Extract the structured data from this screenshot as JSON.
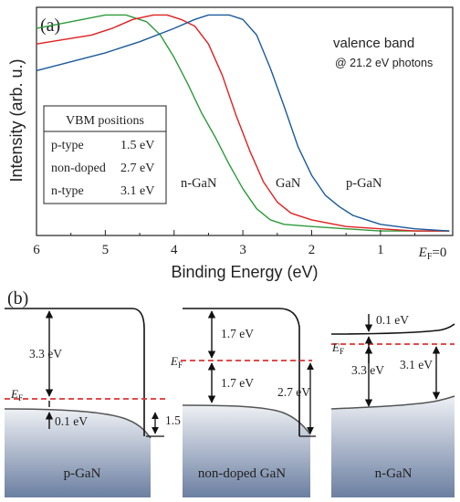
{
  "panel_a": {
    "label": "(a)",
    "annotation_line1": "valence band",
    "annotation_line2": "@ 21.2 eV photons",
    "curve_labels": {
      "n": "n-GaN",
      "un": "GaN",
      "p": "p-GaN"
    },
    "vbm_table": {
      "title": "VBM positions",
      "rows": [
        {
          "name": "p-type",
          "value": "1.5 eV"
        },
        {
          "name": "non-doped",
          "value": "2.7 eV"
        },
        {
          "name": "n-type",
          "value": "3.1 eV"
        }
      ]
    }
  },
  "chart_data": {
    "type": "line",
    "title": "",
    "xlabel": "Binding Energy (eV)",
    "ylabel": "Intensity (arb. u.)",
    "xlim": [
      6,
      -0.05
    ],
    "ylim": [
      0,
      1
    ],
    "x_reversed": true,
    "x_ticks": [
      6,
      5,
      4,
      3,
      2,
      1
    ],
    "x_tick_labels": [
      "6",
      "5",
      "4",
      "3",
      "2",
      "1"
    ],
    "x_zero_label": {
      "main": "E",
      "sub": "F",
      "suffix": "=0"
    },
    "grid": false,
    "series": [
      {
        "name": "n-GaN",
        "color": "#2e9a3a",
        "points": [
          [
            6.0,
            0.93
          ],
          [
            5.5,
            0.96
          ],
          [
            5.0,
            0.99
          ],
          [
            4.7,
            0.99
          ],
          [
            4.4,
            0.96
          ],
          [
            4.2,
            0.9
          ],
          [
            4.0,
            0.8
          ],
          [
            3.8,
            0.68
          ],
          [
            3.6,
            0.55
          ],
          [
            3.4,
            0.44
          ],
          [
            3.2,
            0.32
          ],
          [
            3.0,
            0.21
          ],
          [
            2.8,
            0.12
          ],
          [
            2.6,
            0.07
          ],
          [
            2.4,
            0.05
          ],
          [
            2.0,
            0.04
          ],
          [
            1.5,
            0.03
          ],
          [
            1.0,
            0.02
          ],
          [
            0.5,
            0.02
          ],
          [
            0.0,
            0.02
          ]
        ]
      },
      {
        "name": "GaN",
        "color": "#e02020",
        "points": [
          [
            6.0,
            0.86
          ],
          [
            5.6,
            0.88
          ],
          [
            5.2,
            0.9
          ],
          [
            4.9,
            0.93
          ],
          [
            4.6,
            0.97
          ],
          [
            4.3,
            0.99
          ],
          [
            4.1,
            0.99
          ],
          [
            3.9,
            0.97
          ],
          [
            3.7,
            0.94
          ],
          [
            3.5,
            0.86
          ],
          [
            3.3,
            0.72
          ],
          [
            3.1,
            0.54
          ],
          [
            2.9,
            0.38
          ],
          [
            2.7,
            0.24
          ],
          [
            2.5,
            0.15
          ],
          [
            2.3,
            0.1
          ],
          [
            2.0,
            0.07
          ],
          [
            1.5,
            0.04
          ],
          [
            1.0,
            0.03
          ],
          [
            0.5,
            0.02
          ],
          [
            0.0,
            0.02
          ]
        ]
      },
      {
        "name": "p-GaN",
        "color": "#1a5a9c",
        "points": [
          [
            6.0,
            0.74
          ],
          [
            5.5,
            0.78
          ],
          [
            5.0,
            0.82
          ],
          [
            4.5,
            0.87
          ],
          [
            4.0,
            0.93
          ],
          [
            3.7,
            0.97
          ],
          [
            3.5,
            0.99
          ],
          [
            3.2,
            0.99
          ],
          [
            3.0,
            0.97
          ],
          [
            2.8,
            0.9
          ],
          [
            2.6,
            0.75
          ],
          [
            2.4,
            0.58
          ],
          [
            2.2,
            0.4
          ],
          [
            2.0,
            0.27
          ],
          [
            1.8,
            0.18
          ],
          [
            1.6,
            0.13
          ],
          [
            1.4,
            0.09
          ],
          [
            1.2,
            0.07
          ],
          [
            1.0,
            0.05
          ],
          [
            0.5,
            0.03
          ],
          [
            0.0,
            0.02
          ]
        ]
      }
    ]
  },
  "panel_b": {
    "label": "(b)",
    "p": {
      "name": "p-GaN",
      "gap": "3.3 eV",
      "ef_to_vb": "0.1 eV",
      "bending": "1.5 eV",
      "ef_main": "E",
      "ef_sub": "F"
    },
    "un": {
      "name": "non-doped GaN",
      "cb_to_ef": "1.7 eV",
      "ef_to_vb": "1.7 eV",
      "bending": "2.7 eV",
      "ef_main": "E",
      "ef_sub": "F"
    },
    "n": {
      "name": "n-GaN",
      "cb_gap": "0.1 eV",
      "gap": "3.3 eV",
      "ef_to_vb": "3.1 eV",
      "ef_main": "E",
      "ef_sub": "F"
    },
    "colors": {
      "ef_line": "#e03030",
      "band": "#222222",
      "fill_top": "#e6e9ef",
      "fill_bottom": "#6b7fa1"
    }
  }
}
